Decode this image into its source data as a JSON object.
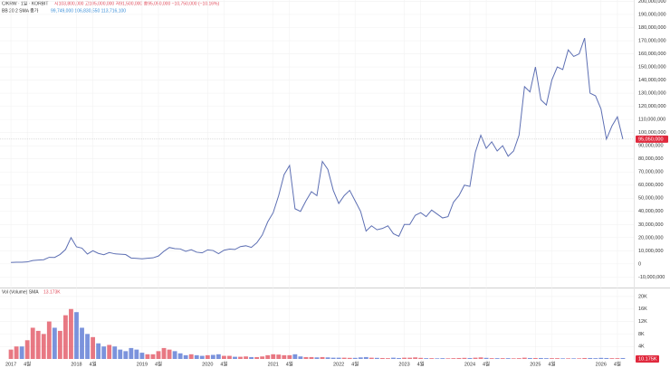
{
  "chart_data": {
    "type": "line",
    "symbol": "C/KRW · 1일 · KORBIT",
    "ohlc": "시103,800,000 고105,000,000 저91,500,000 종95,050,000 −10,750,000 (−10.16%)",
    "indicator": "BB 20 2 SMA 종가",
    "indicator_values": "99,749,000  106,830,550  113,716,100",
    "color": "#5d6fb3",
    "x": [
      "2017-01",
      "2017-02",
      "2017-03",
      "2017-04",
      "2017-05",
      "2017-06",
      "2017-07",
      "2017-08",
      "2017-09",
      "2017-10",
      "2017-11",
      "2017-12",
      "2018-01",
      "2018-02",
      "2018-03",
      "2018-04",
      "2018-05",
      "2018-06",
      "2018-07",
      "2018-08",
      "2018-09",
      "2018-10",
      "2018-11",
      "2018-12",
      "2019-01",
      "2019-02",
      "2019-03",
      "2019-04",
      "2019-05",
      "2019-06",
      "2019-07",
      "2019-08",
      "2019-09",
      "2019-10",
      "2019-11",
      "2019-12",
      "2020-01",
      "2020-02",
      "2020-03",
      "2020-04",
      "2020-05",
      "2020-06",
      "2020-07",
      "2020-08",
      "2020-09",
      "2020-10",
      "2020-11",
      "2020-12",
      "2021-01",
      "2021-02",
      "2021-03",
      "2021-04",
      "2021-05",
      "2021-06",
      "2021-07",
      "2021-08",
      "2021-09",
      "2021-10",
      "2021-11",
      "2021-12",
      "2022-01",
      "2022-02",
      "2022-03",
      "2022-04",
      "2022-05",
      "2022-06",
      "2022-07",
      "2022-08",
      "2022-09",
      "2022-10",
      "2022-11",
      "2022-12",
      "2023-01",
      "2023-02",
      "2023-03",
      "2023-04",
      "2023-05",
      "2023-06",
      "2023-07",
      "2023-08",
      "2023-09",
      "2023-10",
      "2023-11",
      "2023-12",
      "2024-01",
      "2024-02",
      "2024-03",
      "2024-04",
      "2024-05",
      "2024-06",
      "2024-07",
      "2024-08",
      "2024-09",
      "2024-10",
      "2024-11",
      "2024-12",
      "2025-01",
      "2025-02",
      "2025-03",
      "2025-04",
      "2025-05",
      "2025-06",
      "2025-07",
      "2025-08",
      "2025-09",
      "2025-10",
      "2025-11",
      "2025-12",
      "2026-01",
      "2026-02",
      "2026-03",
      "2026-04",
      "2026-05"
    ],
    "values": [
      1100000,
      1300000,
      1250000,
      1500000,
      2600000,
      2900000,
      3200000,
      5000000,
      4900000,
      7200000,
      11000000,
      20000000,
      13000000,
      12000000,
      7500000,
      10000000,
      8000000,
      7000000,
      8700000,
      7700000,
      7400000,
      7100000,
      4500000,
      4200000,
      3900000,
      4300000,
      4600000,
      6000000,
      9600000,
      12500000,
      11600000,
      11400000,
      9600000,
      10800000,
      8900000,
      8400000,
      10700000,
      10200000,
      7800000,
      10400000,
      11300000,
      11000000,
      13200000,
      13800000,
      12600000,
      16100000,
      22000000,
      32000000,
      39000000,
      52000000,
      68000000,
      75000000,
      42000000,
      40000000,
      48000000,
      55000000,
      52000000,
      78000000,
      72000000,
      56000000,
      46000000,
      52000000,
      56000000,
      48000000,
      40000000,
      25000000,
      29000000,
      26000000,
      27000000,
      29000000,
      23000000,
      21000000,
      30000000,
      30000000,
      37000000,
      39000000,
      36000000,
      41000000,
      38000000,
      35000000,
      36000000,
      47000000,
      52000000,
      60000000,
      59000000,
      85000000,
      98000000,
      88000000,
      93000000,
      86000000,
      90000000,
      82000000,
      86000000,
      98000000,
      135000000,
      131000000,
      150000000,
      125000000,
      121000000,
      140000000,
      150000000,
      148000000,
      163000000,
      158000000,
      160000000,
      172000000,
      130000000,
      128000000,
      118000000,
      95000000,
      105000000,
      112000000,
      95050000
    ],
    "xlim": [
      "2016-11",
      "2026-07"
    ],
    "xticks": [
      {
        "value": "2017-01",
        "label": "2017"
      },
      {
        "value": "2017-04",
        "label": "4월"
      },
      {
        "value": "2018-01",
        "label": "2018"
      },
      {
        "value": "2018-04",
        "label": "4월"
      },
      {
        "value": "2019-01",
        "label": "2019"
      },
      {
        "value": "2019-04",
        "label": "4월"
      },
      {
        "value": "2020-01",
        "label": "2020"
      },
      {
        "value": "2020-04",
        "label": "4월"
      },
      {
        "value": "2021-01",
        "label": "2021"
      },
      {
        "value": "2021-04",
        "label": "4월"
      },
      {
        "value": "2022-01",
        "label": "2022"
      },
      {
        "value": "2022-04",
        "label": "4월"
      },
      {
        "value": "2023-01",
        "label": "2023"
      },
      {
        "value": "2023-04",
        "label": "4월"
      },
      {
        "value": "2024-01",
        "label": "2024"
      },
      {
        "value": "2024-04",
        "label": "4월"
      },
      {
        "value": "2025-01",
        "label": "2025"
      },
      {
        "value": "2025-04",
        "label": "4월"
      },
      {
        "value": "2026-01",
        "label": "2026"
      },
      {
        "value": "2026-04",
        "label": "4월"
      }
    ],
    "ylim": [
      -18000000,
      201000000
    ],
    "yticks": [
      {
        "value": -10000000,
        "label": "-10,000,000"
      },
      0,
      {
        "value": 10000000,
        "label": "10,000,000"
      },
      {
        "value": 20000000,
        "label": "20,000,000"
      },
      {
        "value": 30000000,
        "label": "30,000,000"
      },
      {
        "value": 40000000,
        "label": "40,000,000"
      },
      {
        "value": 50000000,
        "label": "50,000,000"
      },
      {
        "value": 60000000,
        "label": "60,000,000"
      },
      {
        "value": 70000000,
        "label": "70,000,000"
      },
      {
        "value": 80000000,
        "label": "80,000,000"
      },
      {
        "value": 90000000,
        "label": "90,000,000"
      },
      {
        "value": 100000000,
        "label": "100,000,000"
      },
      {
        "value": 110000000,
        "label": "110,000,000"
      },
      {
        "value": 120000000,
        "label": "120,000,000"
      },
      {
        "value": 130000000,
        "label": "130,000,000"
      },
      {
        "value": 140000000,
        "label": "140,000,000"
      },
      {
        "value": 150000000,
        "label": "150,000,000"
      },
      {
        "value": 160000000,
        "label": "160,000,000"
      },
      {
        "value": 170000000,
        "label": "170,000,000"
      },
      {
        "value": 180000000,
        "label": "180,000,000"
      },
      {
        "value": 190000000,
        "label": "190,000,000"
      },
      {
        "value": 200000000,
        "label": "200,000,000"
      }
    ],
    "grid": true,
    "last_price": {
      "value": 95050000,
      "label": "95,050,000"
    },
    "volume": {
      "type": "bar",
      "label": "Vol (Volume) SMA",
      "sma_label": "13.173K",
      "last_label": "10.175K",
      "up_color": "#e04b5a",
      "down_color": "#4f6fd0",
      "values": [
        3000,
        4000,
        4000,
        6000,
        10000,
        9000,
        8000,
        12000,
        10000,
        9000,
        14000,
        16000,
        15000,
        10000,
        8000,
        7000,
        5000,
        4000,
        4500,
        4000,
        3000,
        2500,
        3500,
        3000,
        2000,
        1500,
        1500,
        2500,
        3500,
        3000,
        2500,
        1800,
        1200,
        1500,
        1200,
        1000,
        1200,
        1300,
        1500,
        1000,
        1000,
        700,
        700,
        800,
        600,
        600,
        800,
        1200,
        1500,
        1400,
        1200,
        1200,
        1500,
        800,
        600,
        600,
        500,
        600,
        500,
        400,
        400,
        400,
        350,
        350,
        500,
        600,
        400,
        350,
        300,
        250,
        400,
        300,
        400,
        400,
        500,
        350,
        250,
        250,
        200,
        250,
        200,
        250,
        300,
        350,
        300,
        400,
        500,
        350,
        250,
        250,
        250,
        250,
        200,
        250,
        400,
        300,
        300,
        300,
        250,
        250,
        250,
        200,
        200,
        200,
        200,
        300,
        300,
        250,
        350,
        300,
        250,
        250,
        300
      ],
      "ylim": [
        0,
        22300
      ],
      "yticks": [
        {
          "value": 4000,
          "label": "4K"
        },
        {
          "value": 8000,
          "label": "8K"
        },
        {
          "value": 12000,
          "label": "12K"
        },
        {
          "value": 16000,
          "label": "16K"
        },
        {
          "value": 20000,
          "label": "20K"
        }
      ]
    }
  }
}
